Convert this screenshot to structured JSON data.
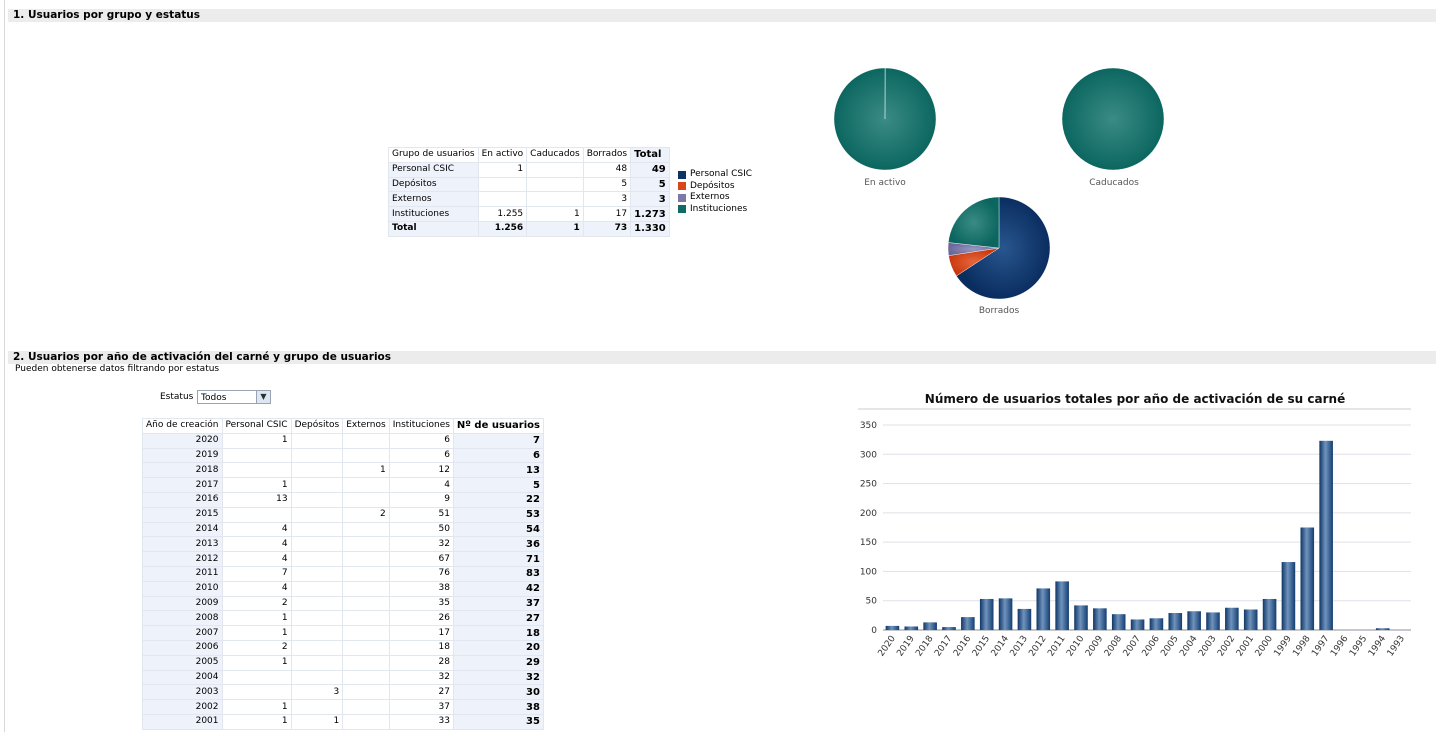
{
  "section1": {
    "title": "1. Usuarios por grupo y estatus",
    "table": {
      "headers": [
        "Grupo de usuarios",
        "En activo",
        "Caducados",
        "Borrados",
        "Total"
      ],
      "rows": [
        {
          "group": "Personal CSIC",
          "activo": "1",
          "caducados": "",
          "borrados": "48",
          "total": "49"
        },
        {
          "group": "Depósitos",
          "activo": "",
          "caducados": "",
          "borrados": "5",
          "total": "5"
        },
        {
          "group": "Externos",
          "activo": "",
          "caducados": "",
          "borrados": "3",
          "total": "3"
        },
        {
          "group": "Instituciones",
          "activo": "1.255",
          "caducados": "1",
          "borrados": "17",
          "total": "1.273"
        }
      ],
      "total_row": {
        "group": "Total",
        "activo": "1.256",
        "caducados": "1",
        "borrados": "73",
        "total": "1.330"
      }
    },
    "legend": [
      {
        "label": "Personal CSIC",
        "color": "#0c3266"
      },
      {
        "label": "Depósitos",
        "color": "#d8461b"
      },
      {
        "label": "Externos",
        "color": "#7c79a8"
      },
      {
        "label": "Instituciones",
        "color": "#0f6b64"
      }
    ],
    "pies": [
      {
        "label": "En activo",
        "values": [
          1,
          0,
          0,
          1255
        ]
      },
      {
        "label": "Caducados",
        "values": [
          0,
          0,
          0,
          1
        ]
      },
      {
        "label": "Borrados",
        "values": [
          48,
          5,
          3,
          17
        ]
      }
    ]
  },
  "section2": {
    "title": "2. Usuarios por año de activación del carné y grupo de usuarios",
    "subtitle": "Pueden obtenerse datos filtrando por estatus",
    "filter": {
      "label": "Estatus",
      "value": "Todos"
    },
    "table": {
      "headers": [
        "Año de creación",
        "Personal CSIC",
        "Depósitos",
        "Externos",
        "Instituciones",
        "Nº de usuarios"
      ],
      "rows": [
        [
          "2020",
          "1",
          "",
          "",
          "6",
          "7"
        ],
        [
          "2019",
          "",
          "",
          "",
          "6",
          "6"
        ],
        [
          "2018",
          "",
          "",
          "1",
          "12",
          "13"
        ],
        [
          "2017",
          "1",
          "",
          "",
          "4",
          "5"
        ],
        [
          "2016",
          "13",
          "",
          "",
          "9",
          "22"
        ],
        [
          "2015",
          "",
          "",
          "2",
          "51",
          "53"
        ],
        [
          "2014",
          "4",
          "",
          "",
          "50",
          "54"
        ],
        [
          "2013",
          "4",
          "",
          "",
          "32",
          "36"
        ],
        [
          "2012",
          "4",
          "",
          "",
          "67",
          "71"
        ],
        [
          "2011",
          "7",
          "",
          "",
          "76",
          "83"
        ],
        [
          "2010",
          "4",
          "",
          "",
          "38",
          "42"
        ],
        [
          "2009",
          "2",
          "",
          "",
          "35",
          "37"
        ],
        [
          "2008",
          "1",
          "",
          "",
          "26",
          "27"
        ],
        [
          "2007",
          "1",
          "",
          "",
          "17",
          "18"
        ],
        [
          "2006",
          "2",
          "",
          "",
          "18",
          "20"
        ],
        [
          "2005",
          "1",
          "",
          "",
          "28",
          "29"
        ],
        [
          "2004",
          "",
          "",
          "",
          "32",
          "32"
        ],
        [
          "2003",
          "",
          "3",
          "",
          "27",
          "30"
        ],
        [
          "2002",
          "1",
          "",
          "",
          "37",
          "38"
        ],
        [
          "2001",
          "1",
          "1",
          "",
          "33",
          "35"
        ]
      ]
    }
  },
  "chart_data": {
    "type": "bar",
    "title": "Número de usuarios totales por año de activación de su carné",
    "categories": [
      "2020",
      "2019",
      "2018",
      "2017",
      "2016",
      "2015",
      "2014",
      "2013",
      "2012",
      "2011",
      "2010",
      "2009",
      "2008",
      "2007",
      "2006",
      "2005",
      "2004",
      "2003",
      "2002",
      "2001",
      "2000",
      "1999",
      "1998",
      "1997",
      "1996",
      "1995",
      "1994",
      "1993"
    ],
    "values": [
      7,
      6,
      13,
      5,
      22,
      53,
      54,
      36,
      71,
      83,
      42,
      37,
      27,
      18,
      20,
      29,
      32,
      30,
      38,
      35,
      53,
      116,
      175,
      323,
      0,
      0,
      3,
      0
    ],
    "ylim": [
      0,
      350
    ],
    "yticks": [
      0,
      50,
      100,
      150,
      200,
      250,
      300,
      350
    ],
    "xlabel": "",
    "ylabel": "",
    "color": "#1c4a7e"
  }
}
